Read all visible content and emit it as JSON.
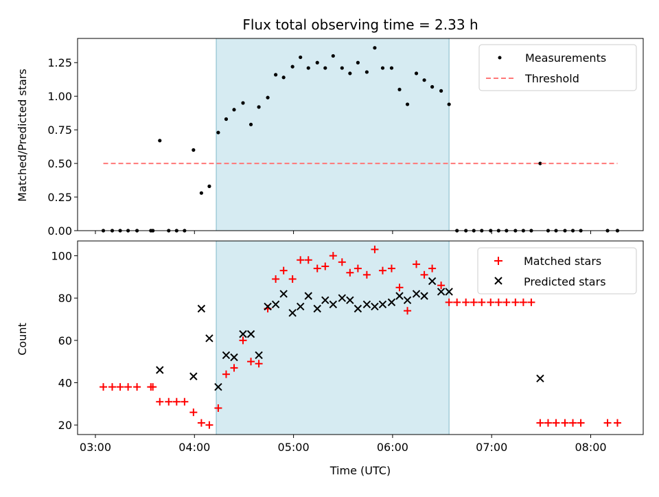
{
  "chart_data": {
    "title": "Flux total observing time = 2.33 h",
    "xlabel": "Time (UTC)",
    "x_tick_labels": [
      "03:00",
      "04:00",
      "05:00",
      "06:00",
      "07:00",
      "08:00"
    ],
    "x_tick_hours": [
      3,
      4,
      5,
      6,
      7,
      8
    ],
    "xlim_hours": [
      2.82,
      8.53
    ],
    "shaded_interval_hours": [
      4.22,
      6.57
    ],
    "shade_color": "#add8e6",
    "panels": [
      {
        "type": "scatter",
        "ylabel": "Matched/Predicted stars",
        "ylim": [
          0,
          1.43
        ],
        "y_ticks": [
          0,
          0.25,
          0.5,
          0.75,
          1.0,
          1.25
        ],
        "y_tick_labels": [
          "0.00",
          "0.25",
          "0.50",
          "0.75",
          "1.00",
          "1.25"
        ],
        "legend_position": "top-right",
        "series": [
          {
            "name": "Measurements",
            "marker": "dot",
            "color": "#000000",
            "x": [
              3.08,
              3.17,
              3.25,
              3.33,
              3.42,
              3.56,
              3.58,
              3.65,
              3.74,
              3.82,
              3.9,
              3.99,
              4.07,
              4.15,
              4.24,
              4.32,
              4.4,
              4.49,
              4.57,
              4.65,
              4.74,
              4.82,
              4.9,
              4.99,
              5.07,
              5.15,
              5.24,
              5.32,
              5.4,
              5.49,
              5.57,
              5.65,
              5.74,
              5.82,
              5.9,
              5.99,
              6.07,
              6.15,
              6.24,
              6.32,
              6.4,
              6.49,
              6.57,
              6.65,
              6.74,
              6.82,
              6.9,
              6.99,
              7.07,
              7.15,
              7.24,
              7.32,
              7.4,
              7.49,
              7.57,
              7.65,
              7.74,
              7.82,
              7.9,
              8.17,
              8.27
            ],
            "y": [
              0,
              0,
              0,
              0,
              0,
              0,
              0,
              0.67,
              0,
              0,
              0,
              0.6,
              0.28,
              0.33,
              0.73,
              0.83,
              0.9,
              0.95,
              0.79,
              0.92,
              0.99,
              1.16,
              1.14,
              1.22,
              1.29,
              1.21,
              1.25,
              1.21,
              1.3,
              1.21,
              1.17,
              1.25,
              1.18,
              1.36,
              1.21,
              1.21,
              1.05,
              0.94,
              1.17,
              1.12,
              1.07,
              1.04,
              0.94,
              0,
              0,
              0,
              0,
              0,
              0,
              0,
              0,
              0,
              0,
              0.5,
              0,
              0,
              0,
              0,
              0,
              0,
              0
            ]
          },
          {
            "name": "Threshold",
            "marker": "dashed-line",
            "color": "#ff7777",
            "x": [
              3.08,
              8.27
            ],
            "y": [
              0.5,
              0.5
            ]
          }
        ]
      },
      {
        "type": "scatter",
        "ylabel": "Count",
        "ylim": [
          15.5,
          107
        ],
        "y_ticks": [
          20,
          40,
          60,
          80,
          100
        ],
        "y_tick_labels": [
          "20",
          "40",
          "60",
          "80",
          "100"
        ],
        "legend_position": "top-right",
        "series": [
          {
            "name": "Matched stars",
            "marker": "plus",
            "color": "#ff0000",
            "x": [
              3.08,
              3.17,
              3.25,
              3.33,
              3.42,
              3.56,
              3.58,
              3.65,
              3.74,
              3.82,
              3.9,
              3.99,
              4.07,
              4.15,
              4.24,
              4.32,
              4.4,
              4.49,
              4.57,
              4.65,
              4.74,
              4.82,
              4.9,
              4.99,
              5.07,
              5.15,
              5.24,
              5.32,
              5.4,
              5.49,
              5.57,
              5.65,
              5.74,
              5.82,
              5.9,
              5.99,
              6.07,
              6.15,
              6.24,
              6.32,
              6.4,
              6.49,
              6.57,
              6.65,
              6.74,
              6.82,
              6.9,
              6.99,
              7.07,
              7.15,
              7.24,
              7.32,
              7.4,
              7.49,
              7.57,
              7.65,
              7.74,
              7.82,
              7.9,
              8.17,
              8.27
            ],
            "y": [
              38,
              38,
              38,
              38,
              38,
              38,
              38,
              31,
              31,
              31,
              31,
              26,
              21,
              20,
              28,
              44,
              47,
              60,
              50,
              49,
              75,
              89,
              93,
              89,
              98,
              98,
              94,
              95,
              100,
              97,
              92,
              94,
              91,
              103,
              93,
              94,
              85,
              74,
              96,
              91,
              94,
              86,
              78,
              78,
              78,
              78,
              78,
              78,
              78,
              78,
              78,
              78,
              78,
              21,
              21,
              21,
              21,
              21,
              21,
              21,
              21
            ]
          },
          {
            "name": "Predicted stars",
            "marker": "x",
            "color": "#000000",
            "x": [
              3.65,
              3.99,
              4.07,
              4.15,
              4.24,
              4.32,
              4.4,
              4.49,
              4.57,
              4.65,
              4.74,
              4.82,
              4.9,
              4.99,
              5.07,
              5.15,
              5.24,
              5.32,
              5.4,
              5.49,
              5.57,
              5.65,
              5.74,
              5.82,
              5.9,
              5.99,
              6.07,
              6.15,
              6.24,
              6.32,
              6.4,
              6.49,
              6.57,
              7.49
            ],
            "y": [
              46,
              43,
              75,
              61,
              38,
              53,
              52,
              63,
              63,
              53,
              76,
              77,
              82,
              73,
              76,
              81,
              75,
              79,
              77,
              80,
              79,
              75,
              77,
              76,
              77,
              78,
              81,
              79,
              82,
              81,
              88,
              83,
              83,
              42
            ]
          }
        ]
      }
    ]
  }
}
